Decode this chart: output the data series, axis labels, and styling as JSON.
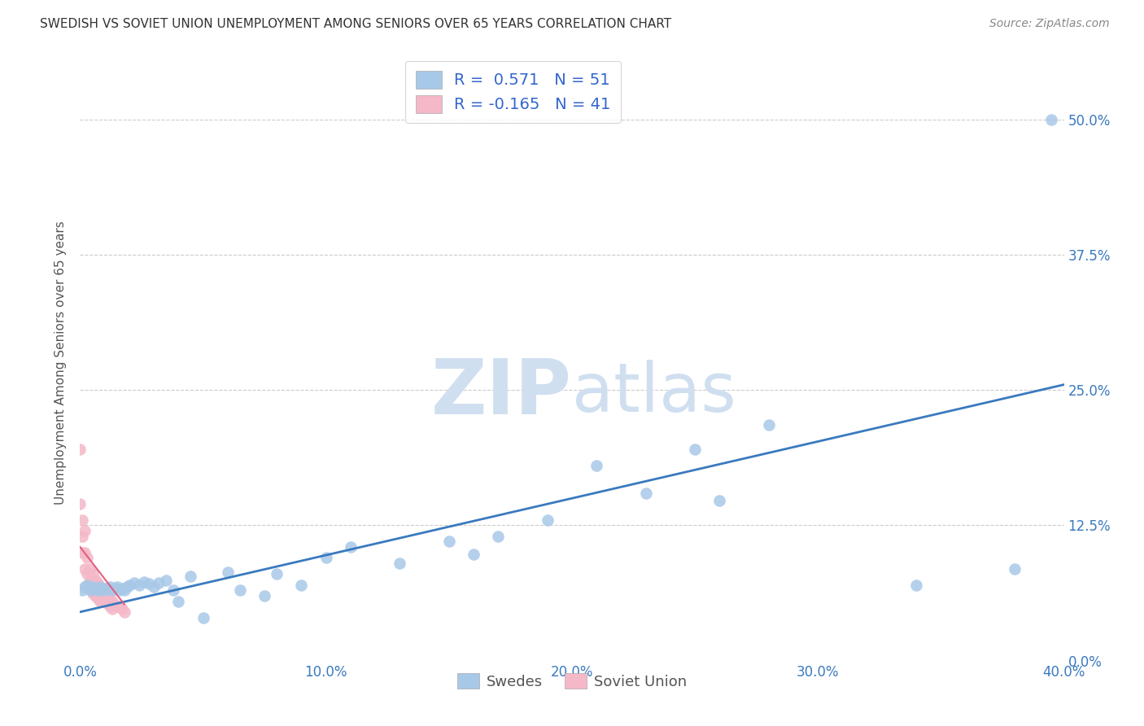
{
  "title": "SWEDISH VS SOVIET UNION UNEMPLOYMENT AMONG SENIORS OVER 65 YEARS CORRELATION CHART",
  "source": "Source: ZipAtlas.com",
  "ylabel": "Unemployment Among Seniors over 65 years",
  "xlabel_swedes": "Swedes",
  "xlabel_soviet": "Soviet Union",
  "xlim": [
    0.0,
    0.4
  ],
  "ylim": [
    0.0,
    0.55
  ],
  "xticks": [
    0.0,
    0.1,
    0.2,
    0.3,
    0.4
  ],
  "xtick_labels": [
    "0.0%",
    "10.0%",
    "20.0%",
    "30.0%",
    "40.0%"
  ],
  "ytick_labels": [
    "0.0%",
    "12.5%",
    "25.0%",
    "37.5%",
    "50.0%"
  ],
  "ytick_values": [
    0.0,
    0.125,
    0.25,
    0.375,
    0.5
  ],
  "R_swedes": 0.571,
  "N_swedes": 51,
  "R_soviet": -0.165,
  "N_soviet": 41,
  "swedes_color": "#a8c8e8",
  "swedes_line_color": "#3a7abf",
  "soviet_color": "#f4b8c8",
  "soviet_line_color": "#e06080",
  "legend_text_color": "#3366cc",
  "watermark_color": "#d0dff0",
  "swedes_x": [
    0.001,
    0.002,
    0.003,
    0.004,
    0.005,
    0.006,
    0.007,
    0.008,
    0.009,
    0.01,
    0.011,
    0.012,
    0.013,
    0.014,
    0.015,
    0.016,
    0.017,
    0.018,
    0.019,
    0.02,
    0.022,
    0.024,
    0.026,
    0.028,
    0.03,
    0.032,
    0.035,
    0.038,
    0.04,
    0.045,
    0.05,
    0.06,
    0.065,
    0.075,
    0.08,
    0.09,
    0.1,
    0.11,
    0.13,
    0.15,
    0.16,
    0.17,
    0.19,
    0.21,
    0.23,
    0.25,
    0.26,
    0.28,
    0.34,
    0.38,
    0.395
  ],
  "swedes_y": [
    0.065,
    0.068,
    0.07,
    0.065,
    0.068,
    0.066,
    0.065,
    0.068,
    0.065,
    0.067,
    0.066,
    0.068,
    0.065,
    0.067,
    0.068,
    0.065,
    0.067,
    0.065,
    0.068,
    0.07,
    0.072,
    0.07,
    0.073,
    0.071,
    0.068,
    0.072,
    0.074,
    0.065,
    0.055,
    0.078,
    0.04,
    0.082,
    0.065,
    0.06,
    0.08,
    0.07,
    0.095,
    0.105,
    0.09,
    0.11,
    0.098,
    0.115,
    0.13,
    0.18,
    0.155,
    0.195,
    0.148,
    0.218,
    0.07,
    0.085,
    0.5
  ],
  "soviet_x": [
    0.0,
    0.0,
    0.001,
    0.001,
    0.001,
    0.002,
    0.002,
    0.002,
    0.003,
    0.003,
    0.003,
    0.004,
    0.004,
    0.004,
    0.005,
    0.005,
    0.005,
    0.006,
    0.006,
    0.006,
    0.007,
    0.007,
    0.007,
    0.008,
    0.008,
    0.008,
    0.009,
    0.009,
    0.01,
    0.01,
    0.011,
    0.011,
    0.012,
    0.012,
    0.013,
    0.013,
    0.014,
    0.015,
    0.016,
    0.017,
    0.018
  ],
  "soviet_y": [
    0.195,
    0.145,
    0.13,
    0.115,
    0.1,
    0.12,
    0.1,
    0.085,
    0.095,
    0.08,
    0.07,
    0.085,
    0.075,
    0.065,
    0.08,
    0.07,
    0.062,
    0.075,
    0.068,
    0.06,
    0.072,
    0.065,
    0.058,
    0.068,
    0.062,
    0.055,
    0.065,
    0.058,
    0.062,
    0.055,
    0.06,
    0.053,
    0.058,
    0.05,
    0.055,
    0.048,
    0.052,
    0.05,
    0.05,
    0.048,
    0.045
  ],
  "swedes_line_x": [
    0.0,
    0.4
  ],
  "swedes_line_y_start": 0.045,
  "swedes_line_y_end": 0.255,
  "soviet_line_x": [
    0.0,
    0.018
  ],
  "soviet_line_y_start": 0.105,
  "soviet_line_y_end": 0.052
}
